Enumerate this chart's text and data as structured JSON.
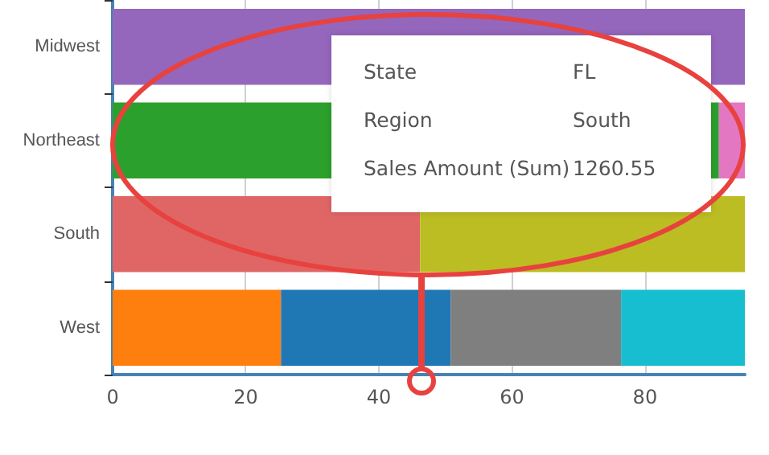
{
  "chart_data": {
    "type": "bar",
    "orientation": "horizontal",
    "stacked": true,
    "categories": [
      "Midwest",
      "Northeast",
      "South",
      "West"
    ],
    "series": [
      {
        "color": "#9467bd",
        "values": [
          95,
          null,
          null,
          null
        ]
      },
      {
        "color": "#2ca02c",
        "values": [
          null,
          91.1,
          null,
          null
        ]
      },
      {
        "color": "#e377c2",
        "values": [
          null,
          3.9,
          null,
          null
        ]
      },
      {
        "color": "#e06666",
        "values": [
          null,
          null,
          46.2,
          null
        ]
      },
      {
        "color": "#bcbd22",
        "values": [
          null,
          null,
          48.8,
          null
        ]
      },
      {
        "color": "#ff7f0e",
        "values": [
          null,
          null,
          null,
          25.3
        ]
      },
      {
        "color": "#1f77b4",
        "values": [
          null,
          null,
          null,
          25.5
        ]
      },
      {
        "color": "#7f7f7f",
        "values": [
          null,
          null,
          null,
          25.6
        ]
      },
      {
        "color": "#17becf",
        "values": [
          null,
          null,
          null,
          18.6
        ]
      }
    ],
    "xlim": [
      0,
      95
    ],
    "xticks": [
      0,
      20,
      40,
      60,
      80
    ],
    "grid": "x",
    "annotations": [
      "State",
      "FL",
      "Region",
      "South",
      "Sales Amount (Sum)",
      "1260.55"
    ]
  }
}
